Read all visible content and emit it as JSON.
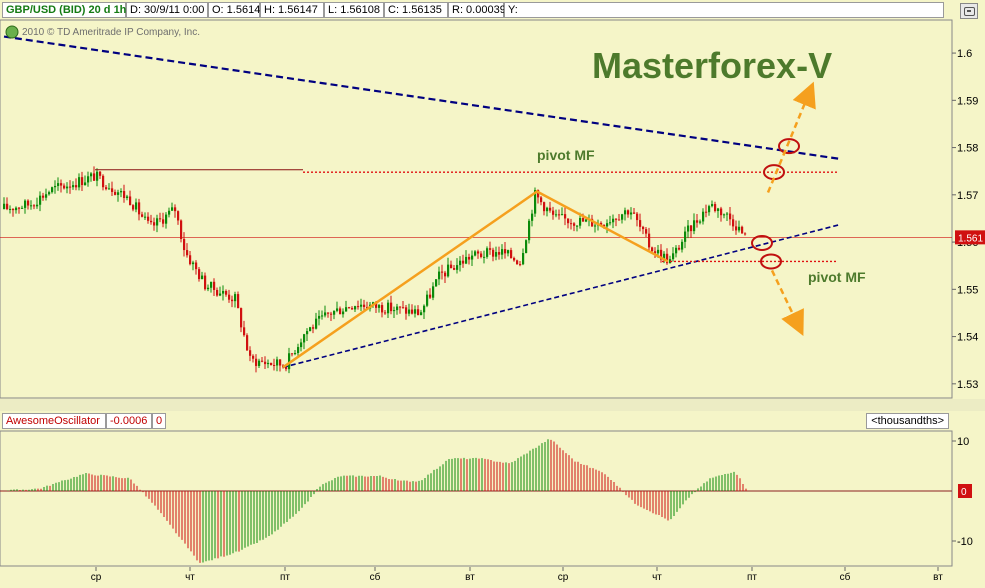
{
  "header": {
    "symbol": "GBP/USD (BID) 20 d 1h",
    "date": "D: 30/9/11 0:00",
    "open": "O: 1.5614",
    "high": "H: 1.56147",
    "low": "L: 1.56108",
    "close": "C: 1.56135",
    "range": "R: 0.00039",
    "y": "Y:"
  },
  "copyright": "2010 © TD Ameritrade IP Company, Inc.",
  "brand": "Masterforex-V",
  "annotations": {
    "pivot_top": "pivot MF",
    "pivot_bottom": "pivot MF"
  },
  "colors": {
    "background": "#f5f5c8",
    "candle_up": "#0a8a0a",
    "candle_down": "#d01010",
    "trend_dash": "#000080",
    "orange": "#f5a01e",
    "pivot_dotted": "#e01010"
  },
  "chart_data": [
    {
      "type": "candlestick",
      "title": "GBP/USD (BID) 20 d 1h",
      "y_ticks": [
        "1.6",
        "1.59",
        "1.58",
        "1.57",
        "1.56",
        "1.55",
        "1.54",
        "1.53"
      ],
      "ylim": [
        1.527,
        1.607
      ],
      "current_price_label": "1.561",
      "x_ticks": [
        "ср",
        "чт",
        "пт",
        "сб",
        "вт",
        "ср",
        "чт",
        "пт",
        "сб",
        "вт"
      ],
      "approx_close_path": [
        {
          "t": 0,
          "y": 1.567
        },
        {
          "t": 30,
          "y": 1.568
        },
        {
          "t": 50,
          "y": 1.571
        },
        {
          "t": 95,
          "y": 1.574
        },
        {
          "t": 130,
          "y": 1.569
        },
        {
          "t": 150,
          "y": 1.563
        },
        {
          "t": 175,
          "y": 1.567
        },
        {
          "t": 185,
          "y": 1.558
        },
        {
          "t": 205,
          "y": 1.551
        },
        {
          "t": 235,
          "y": 1.548
        },
        {
          "t": 250,
          "y": 1.535
        },
        {
          "t": 285,
          "y": 1.534
        },
        {
          "t": 305,
          "y": 1.541
        },
        {
          "t": 330,
          "y": 1.545
        },
        {
          "t": 355,
          "y": 1.547
        },
        {
          "t": 390,
          "y": 1.546
        },
        {
          "t": 420,
          "y": 1.545
        },
        {
          "t": 440,
          "y": 1.553
        },
        {
          "t": 470,
          "y": 1.557
        },
        {
          "t": 500,
          "y": 1.558
        },
        {
          "t": 520,
          "y": 1.556
        },
        {
          "t": 535,
          "y": 1.57
        },
        {
          "t": 555,
          "y": 1.565
        },
        {
          "t": 600,
          "y": 1.564
        },
        {
          "t": 630,
          "y": 1.567
        },
        {
          "t": 650,
          "y": 1.559
        },
        {
          "t": 670,
          "y": 1.556
        },
        {
          "t": 690,
          "y": 1.563
        },
        {
          "t": 710,
          "y": 1.568
        },
        {
          "t": 725,
          "y": 1.566
        },
        {
          "t": 735,
          "y": 1.564
        },
        {
          "t": 745,
          "y": 1.561
        }
      ]
    },
    {
      "type": "bar",
      "title": "AwesomeOscillator",
      "legend_value": "-0.0006",
      "legend_extra": "0",
      "units": "<thousandths>",
      "y_ticks": [
        "10",
        "0",
        "-10"
      ],
      "ylim": [
        -15,
        12
      ],
      "approx_profile": [
        {
          "t": 0,
          "v": 0
        },
        {
          "t": 40,
          "v": 0.5
        },
        {
          "t": 85,
          "v": 3.5
        },
        {
          "t": 130,
          "v": 2.5
        },
        {
          "t": 155,
          "v": -3
        },
        {
          "t": 200,
          "v": -14.5
        },
        {
          "t": 240,
          "v": -12
        },
        {
          "t": 270,
          "v": -9
        },
        {
          "t": 300,
          "v": -4
        },
        {
          "t": 320,
          "v": 1
        },
        {
          "t": 340,
          "v": 3
        },
        {
          "t": 380,
          "v": 3
        },
        {
          "t": 400,
          "v": 2
        },
        {
          "t": 420,
          "v": 2
        },
        {
          "t": 450,
          "v": 6.5
        },
        {
          "t": 480,
          "v": 6.5
        },
        {
          "t": 510,
          "v": 5.5
        },
        {
          "t": 530,
          "v": 8
        },
        {
          "t": 550,
          "v": 10.5
        },
        {
          "t": 575,
          "v": 6
        },
        {
          "t": 605,
          "v": 3.5
        },
        {
          "t": 635,
          "v": -2.5
        },
        {
          "t": 670,
          "v": -6
        },
        {
          "t": 690,
          "v": -1
        },
        {
          "t": 710,
          "v": 2.5
        },
        {
          "t": 735,
          "v": 4
        },
        {
          "t": 748,
          "v": 0
        }
      ],
      "current_value_label": "0"
    }
  ]
}
